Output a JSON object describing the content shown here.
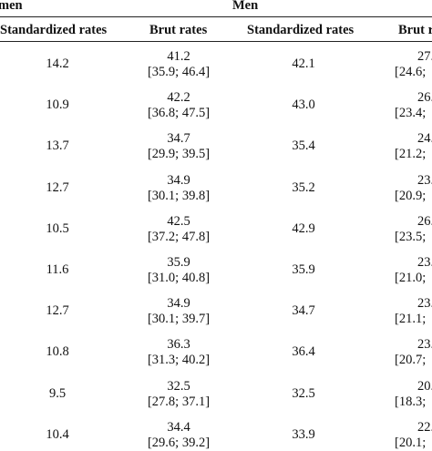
{
  "header": {
    "women_group": "men",
    "men_group": "Men",
    "women_std": "Standardized rates",
    "women_brut": "Brut rates",
    "men_std": "Standardized rates",
    "men_brut": "Brut r"
  },
  "rows": [
    {
      "w_std": "14.2",
      "w_brut": "41.2",
      "w_ci": "[35.9; 46.4]",
      "m_std": "42.1",
      "m_brut": "27.",
      "m_ci": "[24.6;"
    },
    {
      "w_std": "10.9",
      "w_brut": "42.2",
      "w_ci": "[36.8; 47.5]",
      "m_std": "43.0",
      "m_brut": "26.",
      "m_ci": "[23.4;"
    },
    {
      "w_std": "13.7",
      "w_brut": "34.7",
      "w_ci": "[29.9; 39.5]",
      "m_std": "35.4",
      "m_brut": "24.",
      "m_ci": "[21.2;"
    },
    {
      "w_std": "12.7",
      "w_brut": "34.9",
      "w_ci": "[30.1; 39.8]",
      "m_std": "35.2",
      "m_brut": "23.",
      "m_ci": "[20.9;"
    },
    {
      "w_std": "10.5",
      "w_brut": "42.5",
      "w_ci": "[37.2; 47.8]",
      "m_std": "42.9",
      "m_brut": "26.",
      "m_ci": "[23.5;"
    },
    {
      "w_std": "11.6",
      "w_brut": "35.9",
      "w_ci": "[31.0; 40.8]",
      "m_std": "35.9",
      "m_brut": "23.",
      "m_ci": "[21.0;"
    },
    {
      "w_std": "12.7",
      "w_brut": "34.9",
      "w_ci": "[30.1; 39.7]",
      "m_std": "34.7",
      "m_brut": "23.",
      "m_ci": "[21.1;"
    },
    {
      "w_std": "10.8",
      "w_brut": "36.3",
      "w_ci": "[31.3; 40.2]",
      "m_std": "36.4",
      "m_brut": "23.",
      "m_ci": "[20.7;"
    },
    {
      "w_std": "9.5",
      "w_brut": "32.5",
      "w_ci": "[27.8; 37.1]",
      "m_std": "32.5",
      "m_brut": "20.",
      "m_ci": "[18.3;"
    },
    {
      "w_std": "10.4",
      "w_brut": "34.4",
      "w_ci": "[29.6; 39.2]",
      "m_std": "33.9",
      "m_brut": "22.",
      "m_ci": "[20.1;"
    }
  ]
}
